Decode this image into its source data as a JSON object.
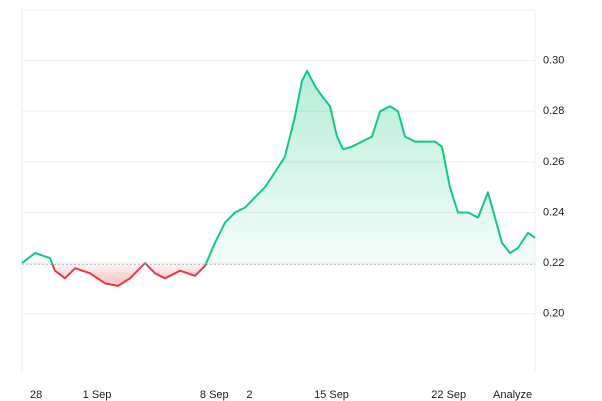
{
  "chart_data": {
    "type": "line",
    "x": [
      -4.48,
      -3.7,
      -2.81,
      -2.51,
      -1.91,
      -1.31,
      -0.42,
      0.48,
      1.25,
      1.97,
      2.87,
      3.46,
      4.06,
      4.96,
      5.85,
      6.45,
      7.04,
      7.64,
      8.24,
      8.84,
      9.43,
      10.03,
      10.63,
      11.22,
      11.82,
      12.24,
      12.54,
      13.01,
      13.43,
      13.91,
      14.33,
      14.69,
      15.22,
      15.82,
      16.42,
      16.9,
      17.49,
      17.97,
      18.39,
      18.99,
      19.58,
      20.18,
      20.6,
      21.07,
      21.55,
      22.15,
      22.75,
      23.34,
      23.76,
      24.18,
      24.66,
      25.13,
      25.73,
      26.15
    ],
    "series": [
      {
        "color": "#16c784",
        "color_below": "#ea3943",
        "values": [
          0.22,
          0.224,
          0.222,
          0.217,
          0.214,
          0.218,
          0.216,
          0.212,
          0.211,
          0.214,
          0.22,
          0.216,
          0.214,
          0.217,
          0.215,
          0.219,
          0.228,
          0.236,
          0.24,
          0.242,
          0.246,
          0.25,
          0.256,
          0.262,
          0.278,
          0.292,
          0.296,
          0.29,
          0.286,
          0.282,
          0.27,
          0.265,
          0.266,
          0.268,
          0.27,
          0.28,
          0.282,
          0.28,
          0.27,
          0.268,
          0.268,
          0.268,
          0.266,
          0.25,
          0.24,
          0.24,
          0.238,
          0.248,
          0.238,
          0.228,
          0.224,
          0.226,
          0.232,
          0.23
        ]
      }
    ],
    "baseline": 0.2195,
    "xlim": [
      -4.48,
      26.15
    ],
    "xticks": [
      {
        "value": -4,
        "label": "28"
      },
      {
        "value": 0,
        "label": "1 Sep"
      },
      {
        "value": 7,
        "label": "8 Sep"
      },
      {
        "value": 9.1,
        "label": "2"
      },
      {
        "value": 14,
        "label": "15 Sep"
      },
      {
        "value": 21,
        "label": "22 Sep"
      }
    ],
    "ylim": [
      0.177,
      0.32
    ],
    "yticks": [
      {
        "value": 0.2,
        "label": "0.20"
      },
      0.22,
      0.24,
      0.26,
      0.28,
      {
        "value": 0.3,
        "label": "0.30"
      }
    ],
    "grid": true
  },
  "button_label": "Analyze"
}
